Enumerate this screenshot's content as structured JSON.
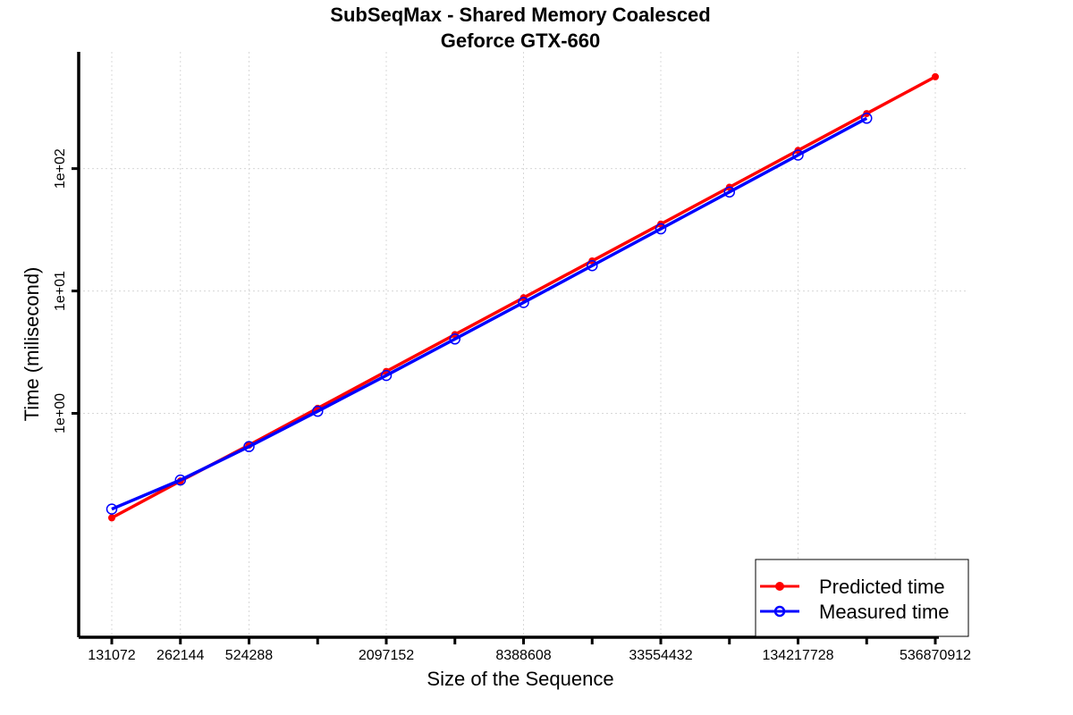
{
  "chart_data": {
    "type": "line",
    "title": "SubSeqMax - Shared Memory Coalesced",
    "subtitle": "Geforce GTX-660",
    "xlabel": "Size of the Sequence",
    "ylabel": "Time (milisecond)",
    "x_scale": "log2",
    "y_scale": "log10",
    "xlim": [
      131072,
      536870912
    ],
    "ylim": [
      0.0148,
      900
    ],
    "x": [
      131072,
      262144,
      524288,
      1048576,
      2097152,
      4194304,
      8388608,
      16777216,
      33554432,
      67108864,
      134217728,
      268435456,
      536870912
    ],
    "x_tick_labels": [
      "131072",
      "262144",
      "524288",
      "",
      "2097152",
      "",
      "8388608",
      "",
      "33554432",
      "",
      "134217728",
      "",
      "536870912"
    ],
    "y_ticks": [
      1,
      10,
      100
    ],
    "y_tick_labels": [
      "1e+00",
      "1e+01",
      "1e+02"
    ],
    "grid": true,
    "legend_position": "bottom-right",
    "series": [
      {
        "name": "Predicted time",
        "color": "#ff0000",
        "marker": "filled-circle",
        "values": [
          0.14,
          0.28,
          0.55,
          1.1,
          2.2,
          4.4,
          8.8,
          17.6,
          35.2,
          70.4,
          140.8,
          281.6,
          563.2
        ]
      },
      {
        "name": "Measured time",
        "color": "#0000ff",
        "marker": "open-circle",
        "values": [
          0.165,
          0.285,
          0.535,
          1.04,
          2.04,
          4.05,
          8.05,
          16.1,
          32.2,
          64.4,
          129.0,
          258.0,
          null
        ]
      }
    ]
  }
}
